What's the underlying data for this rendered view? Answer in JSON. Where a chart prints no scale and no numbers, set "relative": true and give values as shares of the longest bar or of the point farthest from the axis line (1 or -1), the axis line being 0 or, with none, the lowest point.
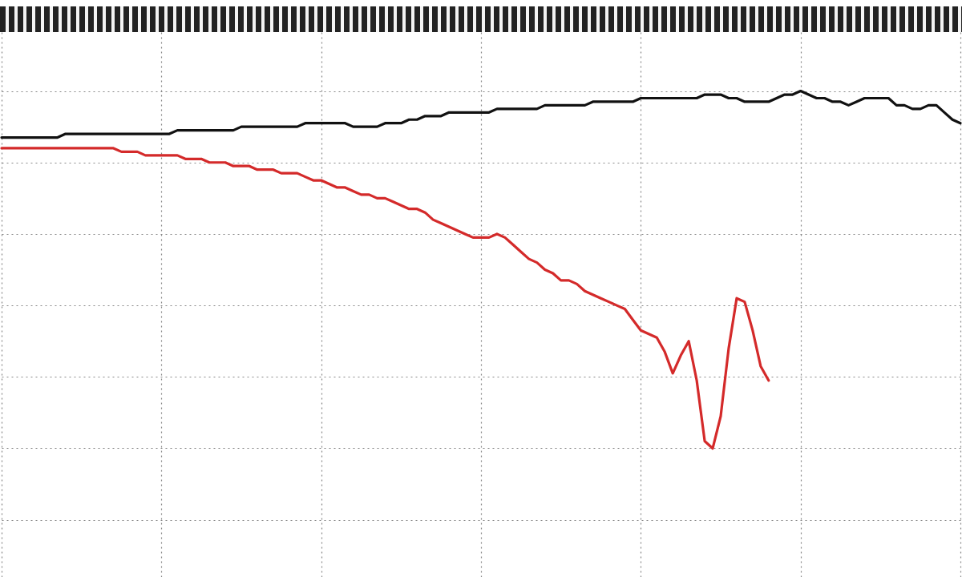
{
  "chart_data": {
    "type": "line",
    "relative": true,
    "grid": true,
    "marker": "none",
    "line_style": "solid",
    "categories": [
      null,
      null,
      null,
      null,
      null,
      null,
      null,
      null,
      null,
      null,
      null,
      null,
      null,
      null,
      null,
      null,
      null,
      null,
      null,
      null,
      null,
      null,
      null,
      null,
      null,
      null,
      null,
      null,
      null,
      null,
      null,
      null,
      null,
      null,
      null,
      null,
      null,
      null,
      null,
      null,
      null,
      null,
      null,
      null,
      null,
      null,
      null,
      null,
      null,
      null,
      null,
      null,
      null,
      null,
      null,
      null,
      null,
      null,
      null,
      null,
      null,
      null,
      null,
      null,
      null,
      null,
      null,
      null,
      null,
      null,
      null,
      null,
      null,
      null,
      null,
      null,
      null,
      null,
      null,
      null,
      null,
      null,
      null,
      null,
      null,
      null,
      null,
      null,
      null,
      null,
      null,
      null,
      null,
      null,
      null,
      null,
      null,
      null,
      null,
      null,
      null,
      null,
      null,
      null,
      null,
      null,
      null,
      null,
      null,
      null,
      null,
      null,
      null,
      null,
      null,
      null,
      null,
      null,
      null,
      null,
      null
    ],
    "series": [
      {
        "color": "#111111",
        "values": [
          0.87,
          0.87,
          0.87,
          0.87,
          0.87,
          0.87,
          0.87,
          0.87,
          0.88,
          0.88,
          0.88,
          0.88,
          0.88,
          0.88,
          0.88,
          0.88,
          0.88,
          0.88,
          0.88,
          0.88,
          0.88,
          0.88,
          0.89,
          0.89,
          0.89,
          0.89,
          0.89,
          0.89,
          0.89,
          0.89,
          0.9,
          0.9,
          0.9,
          0.9,
          0.9,
          0.9,
          0.9,
          0.9,
          0.91,
          0.91,
          0.91,
          0.91,
          0.91,
          0.91,
          0.9,
          0.9,
          0.9,
          0.9,
          0.91,
          0.91,
          0.91,
          0.92,
          0.92,
          0.93,
          0.93,
          0.93,
          0.94,
          0.94,
          0.94,
          0.94,
          0.94,
          0.94,
          0.95,
          0.95,
          0.95,
          0.95,
          0.95,
          0.95,
          0.96,
          0.96,
          0.96,
          0.96,
          0.96,
          0.96,
          0.97,
          0.97,
          0.97,
          0.97,
          0.97,
          0.97,
          0.98,
          0.98,
          0.98,
          0.98,
          0.98,
          0.98,
          0.98,
          0.98,
          0.99,
          0.99,
          0.99,
          0.98,
          0.98,
          0.97,
          0.97,
          0.97,
          0.97,
          0.98,
          0.99,
          0.99,
          1,
          0.99,
          0.98,
          0.98,
          0.97,
          0.97,
          0.96,
          0.97,
          0.98,
          0.98,
          0.98,
          0.98,
          0.96,
          0.96,
          0.95,
          0.95,
          0.96,
          0.96,
          0.94,
          0.92,
          0.91
        ]
      },
      {
        "color": "#d42a2a",
        "values": [
          0.84,
          0.84,
          0.84,
          0.84,
          0.84,
          0.84,
          0.84,
          0.84,
          0.84,
          0.84,
          0.84,
          0.84,
          0.84,
          0.84,
          0.84,
          0.83,
          0.83,
          0.83,
          0.82,
          0.82,
          0.82,
          0.82,
          0.82,
          0.81,
          0.81,
          0.81,
          0.8,
          0.8,
          0.8,
          0.79,
          0.79,
          0.79,
          0.78,
          0.78,
          0.78,
          0.77,
          0.77,
          0.77,
          0.76,
          0.75,
          0.75,
          0.74,
          0.73,
          0.73,
          0.72,
          0.71,
          0.71,
          0.7,
          0.7,
          0.69,
          0.68,
          0.67,
          0.67,
          0.66,
          0.64,
          0.63,
          0.62,
          0.61,
          0.6,
          0.59,
          0.59,
          0.59,
          0.6,
          0.59,
          0.57,
          0.55,
          0.53,
          0.52,
          0.5,
          0.49,
          0.47,
          0.47,
          0.46,
          0.44,
          0.43,
          0.42,
          0.41,
          0.4,
          0.39,
          0.36,
          0.33,
          0.32,
          0.31,
          0.27,
          0.21,
          0.26,
          0.3,
          0.19,
          0.02,
          0,
          0.09,
          0.28,
          0.42,
          0.41,
          0.33,
          0.23,
          0.19,
          null,
          null,
          null,
          null,
          null,
          null,
          null,
          null,
          null,
          null,
          null,
          null,
          null,
          null,
          null,
          null,
          null,
          null,
          null,
          null,
          null,
          null,
          null,
          null
        ]
      }
    ]
  }
}
